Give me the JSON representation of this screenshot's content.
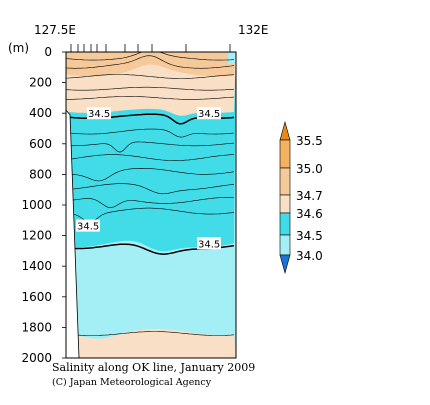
{
  "chart_data": {
    "type": "heatmap",
    "title": "Salinity along OK line, January 2009",
    "credit": "(C) Japan Meteorological Agency",
    "x_range": [
      "127.5E",
      "132E"
    ],
    "y_unit": "(m)",
    "y_ticks": [
      0,
      200,
      400,
      600,
      800,
      1000,
      1200,
      1400,
      1600,
      1800,
      2000
    ],
    "ylim": [
      0,
      2000
    ],
    "colorbar": {
      "levels": [
        "35.5",
        "35.0",
        "34.7",
        "34.6",
        "34.5",
        "34.0"
      ],
      "bands": [
        {
          "range": "> 35.5",
          "color": "#e8891c"
        },
        {
          "range": "35.0 - 35.5",
          "color": "#f2b260"
        },
        {
          "range": "34.7 - 35.0",
          "color": "#f5c99a"
        },
        {
          "range": "34.6 - 34.7",
          "color": "#f9dfc5"
        },
        {
          "range": "34.5 - 34.6",
          "color": "#42dce8"
        },
        {
          "range": "34.0 - 34.5",
          "color": "#a3eff5"
        },
        {
          "range": "< 34.0",
          "color": "#1a73d8"
        }
      ]
    },
    "contour_labels": [
      {
        "text": "34.5",
        "depth": 400
      },
      {
        "text": "34.5",
        "depth": 400
      },
      {
        "text": "34.5",
        "depth": 1200
      },
      {
        "text": "34.5",
        "depth": 1250
      }
    ],
    "layers": [
      {
        "from": 0,
        "to": 380,
        "salinity": "34.6 - 35.0"
      },
      {
        "from": 380,
        "to": 1250,
        "salinity": "34.5 - 34.6"
      },
      {
        "from": 1250,
        "to": 2000,
        "salinity": "34.0 - 34.5"
      }
    ]
  }
}
